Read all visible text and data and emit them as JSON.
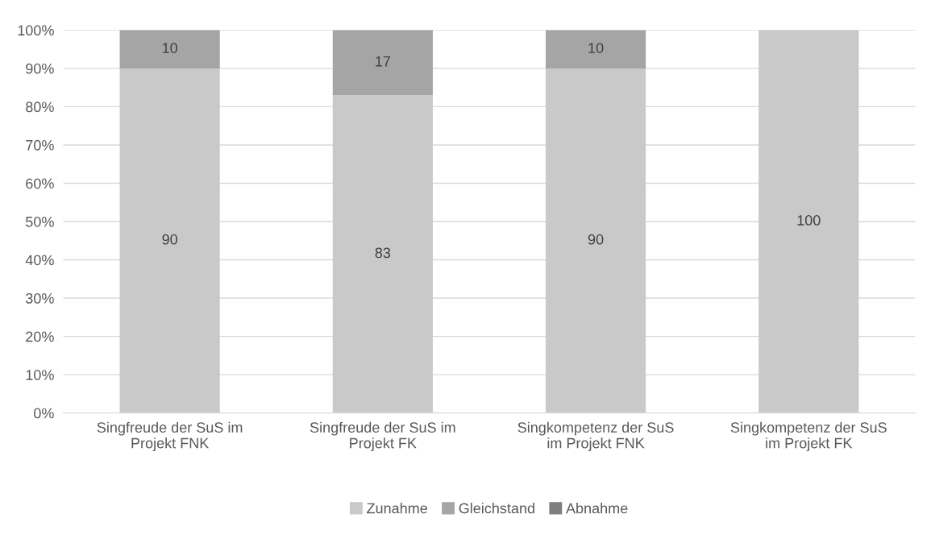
{
  "chart_data": {
    "type": "bar",
    "stacked": true,
    "categories": [
      "Singfreude der SuS im Projekt FNK",
      "Singfreude der SuS im Projekt FK",
      "Singkompetenz der SuS im Projekt FNK",
      "Singkompetenz der SuS im Projekt FK"
    ],
    "series": [
      {
        "name": "Zunahme",
        "color": "#c9c9c9",
        "values": [
          90,
          83,
          90,
          100
        ],
        "value_labels": [
          "90",
          "83",
          "90",
          "100"
        ]
      },
      {
        "name": "Gleichstand",
        "color": "#a5a5a5",
        "values": [
          10,
          17,
          10,
          0
        ],
        "value_labels": [
          "10",
          "17",
          "10",
          null
        ]
      },
      {
        "name": "Abnahme",
        "color": "#7f7f7f",
        "values": [
          0,
          0,
          0,
          0
        ],
        "value_labels": [
          null,
          null,
          null,
          null
        ]
      }
    ],
    "ylim": [
      0,
      100
    ],
    "yticks": [
      {
        "value": 0,
        "label": "0%"
      },
      {
        "value": 10,
        "label": "10%"
      },
      {
        "value": 20,
        "label": "20%"
      },
      {
        "value": 30,
        "label": "30%"
      },
      {
        "value": 40,
        "label": "40%"
      },
      {
        "value": 50,
        "label": "50%"
      },
      {
        "value": 60,
        "label": "60%"
      },
      {
        "value": 70,
        "label": "70%"
      },
      {
        "value": 80,
        "label": "80%"
      },
      {
        "value": 90,
        "label": "90%"
      },
      {
        "value": 100,
        "label": "100%"
      }
    ],
    "grid": "y",
    "legend": "bottom"
  }
}
